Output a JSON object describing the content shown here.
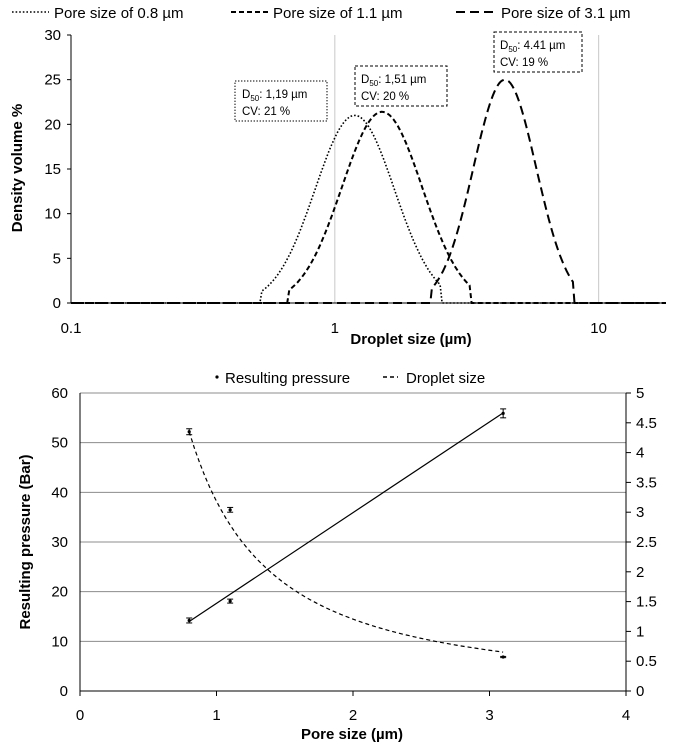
{
  "chart_data": [
    {
      "type": "line",
      "xscale": "log",
      "xlabel": "Droplet size (µm)",
      "ylabel": "Density volume %",
      "xlim": [
        0.1,
        18
      ],
      "ylim": [
        0,
        30
      ],
      "xticks": [
        0.1,
        1,
        10
      ],
      "xtick_labels": [
        "0.1",
        "1",
        "10"
      ],
      "yticks": [
        0,
        5,
        10,
        15,
        20,
        25,
        30
      ],
      "grid": true,
      "legend_position": "top",
      "series": [
        {
          "name": "Pore size of 0.8 µm",
          "style": "dotted",
          "d50": 1.19,
          "peak": 21,
          "cv": 0.21,
          "span": [
            0.52,
            2.55
          ]
        },
        {
          "name": "Pore size of 1.1 µm",
          "style": "dashed",
          "d50": 1.51,
          "peak": 21.4,
          "cv": 0.2,
          "span": [
            0.66,
            3.3
          ]
        },
        {
          "name": "Pore size of 3.1 µm",
          "style": "longdash",
          "d50": 4.41,
          "peak": 25,
          "cv": 0.19,
          "span": [
            2.3,
            8.1
          ]
        }
      ],
      "annotations": [
        {
          "d_label": "D",
          "d_sub": "50",
          "d_text": ": 1,19 µm",
          "cv_text": "CV: 21 %",
          "style": "dotted"
        },
        {
          "d_label": "D",
          "d_sub": "50",
          "d_text": ": 1,51 µm",
          "cv_text": "CV: 20 %",
          "style": "dashed"
        },
        {
          "d_label": "D",
          "d_sub": "50",
          "d_text": ": 4.41 µm",
          "cv_text": "CV: 19 %",
          "style": "longdash"
        }
      ]
    },
    {
      "type": "scatter",
      "xlabel": "Pore size (µm)",
      "ylabel": "Resulting pressure (Bar)",
      "y2label": "",
      "xlim": [
        0,
        4
      ],
      "ylim": [
        0,
        60
      ],
      "y2lim": [
        0,
        5
      ],
      "xticks": [
        0,
        1,
        2,
        3,
        4
      ],
      "yticks": [
        0,
        10,
        20,
        30,
        40,
        50,
        60
      ],
      "y2ticks": [
        0,
        0.5,
        1,
        1.5,
        2,
        2.5,
        3,
        3.5,
        4,
        4.5,
        5
      ],
      "grid": true,
      "legend_position": "top",
      "series": [
        {
          "name": "Resulting pressure",
          "marker": "dot",
          "trendline": "linear",
          "trend_x": [
            0.8,
            3.1
          ],
          "trend_y": [
            14,
            56
          ],
          "x": [
            0.8,
            1.1,
            3.1
          ],
          "y": [
            14.2,
            18.1,
            55.9
          ],
          "yerr": [
            0.5,
            0.4,
            0.9
          ],
          "axis": "left"
        },
        {
          "name": "Droplet size",
          "marker": "dot",
          "trendline": "power",
          "trend_x": [
            0.8,
            3.1
          ],
          "trend_exponent": -1.4,
          "x": [
            0.8,
            1.1,
            3.1
          ],
          "y": [
            4.35,
            3.04,
            0.57
          ],
          "yerr": [
            0.05,
            0.04,
            0.01
          ],
          "axis": "right"
        }
      ]
    }
  ]
}
